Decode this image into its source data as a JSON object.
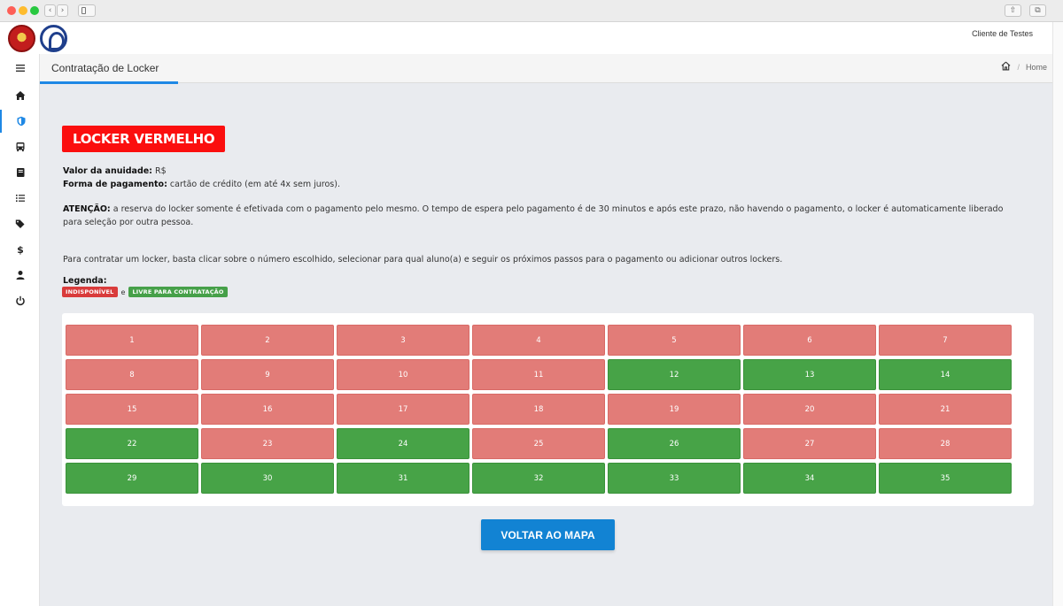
{
  "browser": {
    "back_icon": "chevron-left-icon",
    "forward_icon": "chevron-right-icon"
  },
  "header": {
    "client_name": "Cliente de Testes"
  },
  "sidebar": {
    "items": [
      {
        "icon": "menu-icon"
      },
      {
        "icon": "home-icon"
      },
      {
        "icon": "shield-icon",
        "active": true
      },
      {
        "icon": "bus-icon"
      },
      {
        "icon": "book-icon"
      },
      {
        "icon": "list-icon"
      },
      {
        "icon": "tags-icon"
      },
      {
        "icon": "dollar-icon"
      },
      {
        "icon": "user-icon"
      },
      {
        "icon": "power-icon"
      }
    ]
  },
  "titlebar": {
    "title": "Contratação de Locker",
    "breadcrumb_home": "Home"
  },
  "locker": {
    "title": "LOCKER VERMELHO",
    "fee_label": "Valor da anuidade:",
    "fee_value": "R$",
    "payment_label": "Forma de pagamento:",
    "payment_value": "cartão de crédito (em até 4x sem juros).",
    "attention_label": "ATENÇÃO:",
    "attention_text": "a reserva do locker somente é efetivada com o pagamento pelo mesmo. O tempo de espera pelo pagamento é de 30 minutos e após este prazo, não havendo o pagamento, o locker é automaticamente liberado para seleção por outra pessoa.",
    "instructions": "Para contratar um locker, basta clicar sobre o número escolhido, selecionar para qual aluno(a) e seguir os próximos passos para o pagamento ou adicionar outros lockers.",
    "legend_label": "Legenda:",
    "legend_unavailable": "INDISPONÍVEL",
    "legend_and": "e",
    "legend_available": "LIVRE PARA CONTRATAÇÃO",
    "colors": {
      "unavailable": "#e27c78",
      "available": "#47a347",
      "title_bg": "#fb0e0e",
      "button": "#1283d3"
    },
    "lockers": [
      {
        "number": "1",
        "status": "unavailable"
      },
      {
        "number": "2",
        "status": "unavailable"
      },
      {
        "number": "3",
        "status": "unavailable"
      },
      {
        "number": "4",
        "status": "unavailable"
      },
      {
        "number": "5",
        "status": "unavailable"
      },
      {
        "number": "6",
        "status": "unavailable"
      },
      {
        "number": "7",
        "status": "unavailable"
      },
      {
        "number": "8",
        "status": "unavailable"
      },
      {
        "number": "9",
        "status": "unavailable"
      },
      {
        "number": "10",
        "status": "unavailable"
      },
      {
        "number": "11",
        "status": "unavailable"
      },
      {
        "number": "12",
        "status": "available"
      },
      {
        "number": "13",
        "status": "available"
      },
      {
        "number": "14",
        "status": "available"
      },
      {
        "number": "15",
        "status": "unavailable"
      },
      {
        "number": "16",
        "status": "unavailable"
      },
      {
        "number": "17",
        "status": "unavailable"
      },
      {
        "number": "18",
        "status": "unavailable"
      },
      {
        "number": "19",
        "status": "unavailable"
      },
      {
        "number": "20",
        "status": "unavailable"
      },
      {
        "number": "21",
        "status": "unavailable"
      },
      {
        "number": "22",
        "status": "available"
      },
      {
        "number": "23",
        "status": "unavailable"
      },
      {
        "number": "24",
        "status": "available"
      },
      {
        "number": "25",
        "status": "unavailable"
      },
      {
        "number": "26",
        "status": "available"
      },
      {
        "number": "27",
        "status": "unavailable"
      },
      {
        "number": "28",
        "status": "unavailable"
      },
      {
        "number": "29",
        "status": "available"
      },
      {
        "number": "30",
        "status": "available"
      },
      {
        "number": "31",
        "status": "available"
      },
      {
        "number": "32",
        "status": "available"
      },
      {
        "number": "33",
        "status": "available"
      },
      {
        "number": "34",
        "status": "available"
      },
      {
        "number": "35",
        "status": "available"
      }
    ],
    "back_button": "VOLTAR AO MAPA"
  }
}
